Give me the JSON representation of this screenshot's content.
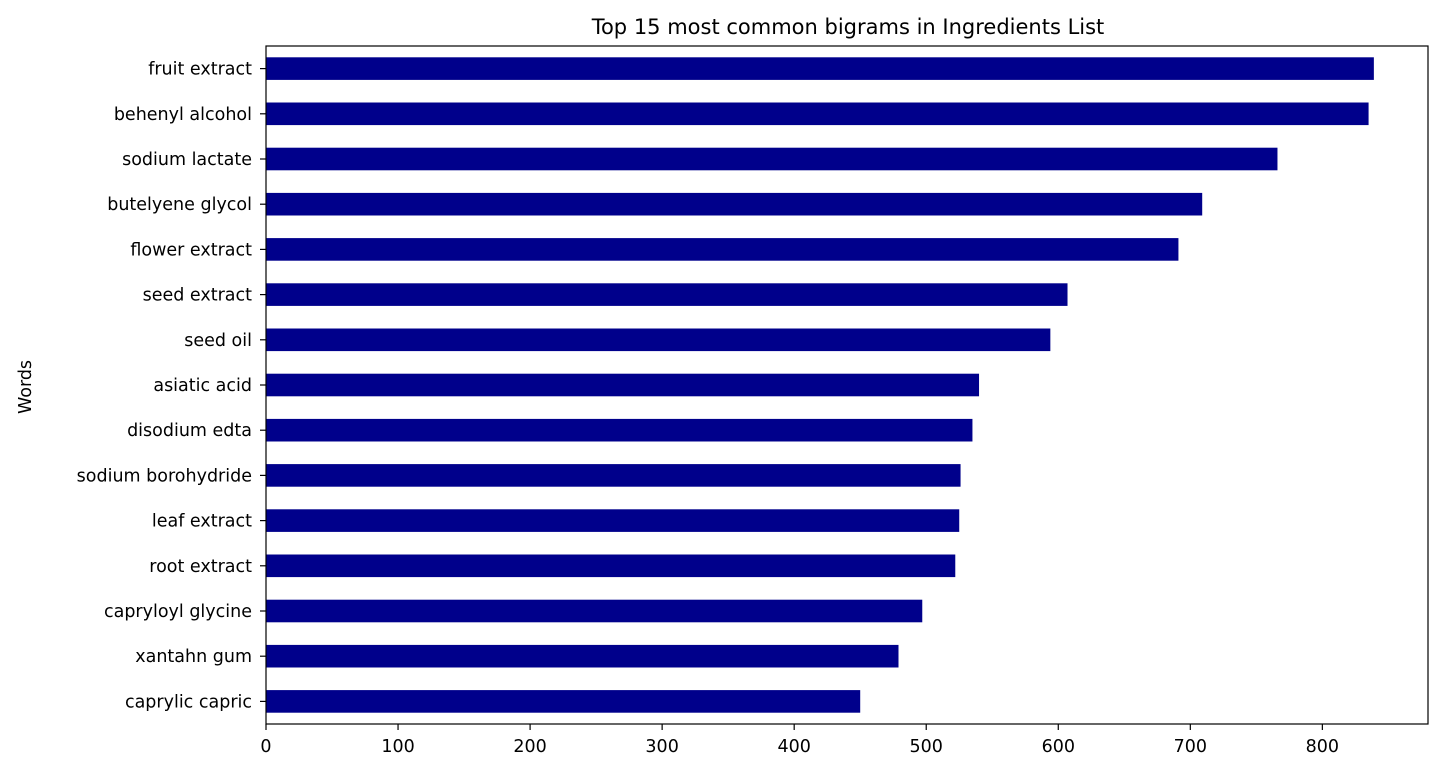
{
  "chart_data": {
    "type": "bar",
    "orientation": "horizontal",
    "title": "Top 15 most common bigrams in Ingredients List",
    "xlabel": "",
    "ylabel": "Words",
    "categories": [
      "fruit extract",
      "behenyl alcohol",
      "sodium lactate",
      "butelyene glycol",
      "flower extract",
      "seed extract",
      "seed oil",
      "asiatic acid",
      "disodium edta",
      "sodium borohydride",
      "leaf extract",
      "root extract",
      "capryloyl glycine",
      "xantahn gum",
      "caprylic capric"
    ],
    "values": [
      839,
      835,
      766,
      709,
      691,
      607,
      594,
      540,
      535,
      526,
      525,
      522,
      497,
      479,
      450
    ],
    "xlim": [
      0,
      880
    ],
    "xticks": [
      0,
      100,
      200,
      300,
      400,
      500,
      600,
      700,
      800
    ],
    "grid": false,
    "bar_color": "#00008b"
  }
}
